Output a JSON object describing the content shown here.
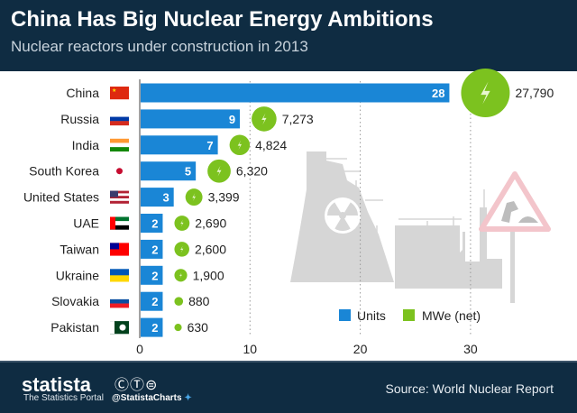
{
  "header": {
    "title": "China Has Big Nuclear Energy Ambitions",
    "subtitle": "Nuclear reactors under construction in 2013"
  },
  "footer": {
    "logo": "statista",
    "tagline": "The Statistics Portal",
    "license_icons": "cc-by-nd",
    "handle": "@StatistaCharts",
    "source": "Source: World Nuclear Report"
  },
  "colors": {
    "units": "#1a86d6",
    "mwe": "#7cc21f",
    "header": "#0f2c42",
    "illustration": "#d6d6d6",
    "sign": "#f3c5cb"
  },
  "chart_data": {
    "type": "bar",
    "orientation": "horizontal",
    "title": "China Has Big Nuclear Energy Ambitions",
    "subtitle": "Nuclear reactors under construction in 2013",
    "categories": [
      "China",
      "Russia",
      "India",
      "South Korea",
      "United States",
      "UAE",
      "Taiwan",
      "Ukraine",
      "Slovakia",
      "Pakistan"
    ],
    "series": [
      {
        "name": "Units",
        "values": [
          28,
          9,
          7,
          5,
          3,
          2,
          2,
          2,
          2,
          2
        ]
      },
      {
        "name": "MWe (net)",
        "values": [
          27790,
          7273,
          4824,
          6320,
          3399,
          2690,
          2600,
          1900,
          880,
          630
        ],
        "labels": [
          "27,790",
          "7,273",
          "4,824",
          "6,320",
          "3,399",
          "2,690",
          "2,600",
          "1,900",
          "880",
          "630"
        ]
      }
    ],
    "xlim": [
      0,
      30
    ],
    "xticks": [
      "0",
      "10",
      "20",
      "30"
    ],
    "grid": "vertical dotted",
    "legend": "bottom-right"
  }
}
